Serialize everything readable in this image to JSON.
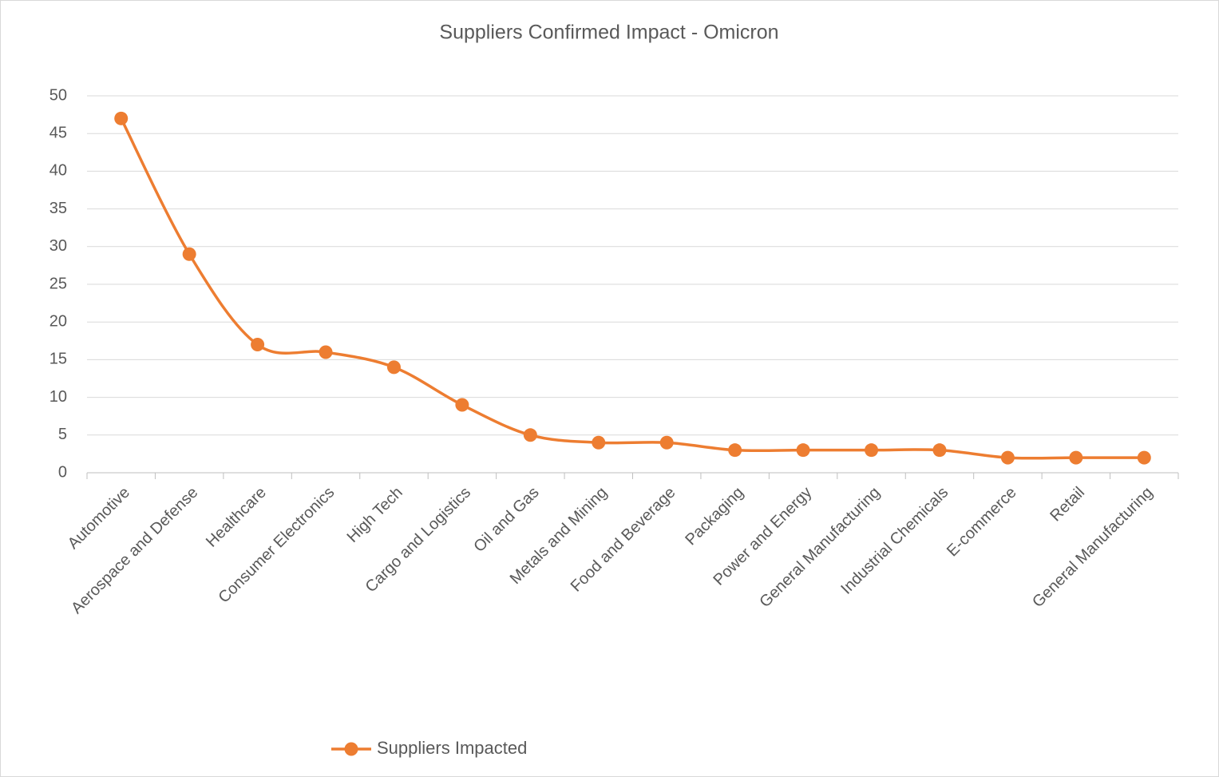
{
  "chart_data": {
    "type": "line",
    "title": "Suppliers Confirmed Impact - Omicron",
    "categories": [
      "Automotive",
      "Aerospace and Defense",
      "Healthcare",
      "Consumer Electronics",
      "High Tech",
      "Cargo and Logistics",
      "Oil and Gas",
      "Metals and Mining",
      "Food and Beverage",
      "Packaging",
      "Power and Energy",
      "General Manufacturing",
      "Industrial Chemicals",
      "E-commerce",
      "Retail",
      "General Manufacturing"
    ],
    "series": [
      {
        "name": "Suppliers Impacted",
        "color": "#ed7d31",
        "values": [
          47,
          29,
          17,
          16,
          14,
          9,
          5,
          4,
          4,
          3,
          3,
          3,
          3,
          2,
          2,
          2
        ]
      }
    ],
    "ylim": [
      0,
      50
    ],
    "yticks": [
      0,
      5,
      10,
      15,
      20,
      25,
      30,
      35,
      40,
      45,
      50
    ],
    "grid": true,
    "smooth": true,
    "legend": "bottom"
  }
}
